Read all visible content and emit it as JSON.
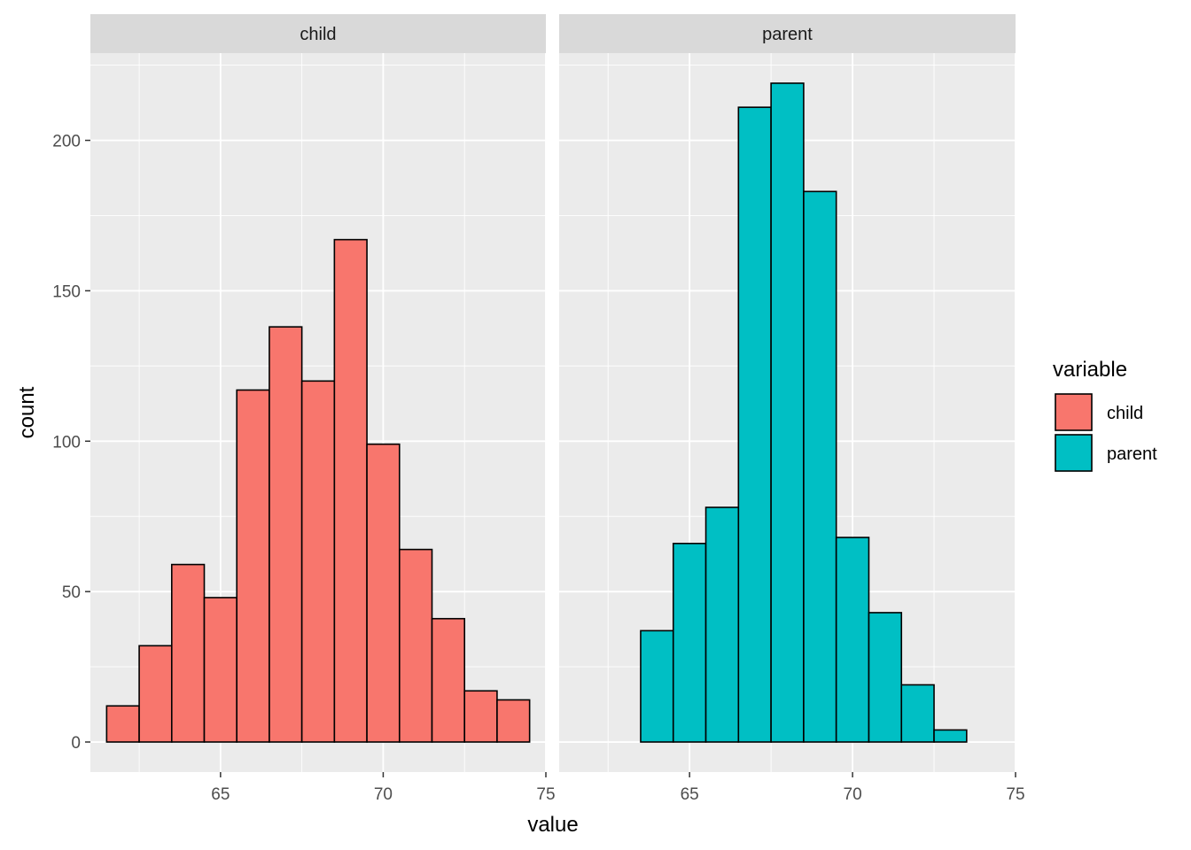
{
  "chart_data": {
    "type": "bar",
    "subtype": "faceted-histogram",
    "xlabel": "value",
    "ylabel": "count",
    "xlim": [
      61.0,
      75.0
    ],
    "ylim": [
      -10,
      229
    ],
    "x_ticks": [
      65,
      70,
      75
    ],
    "y_ticks": [
      0,
      50,
      100,
      150,
      200
    ],
    "bin_width": 1,
    "grid": true,
    "legend": {
      "title": "variable",
      "position": "right",
      "entries": [
        {
          "label": "child",
          "color": "#F8766D"
        },
        {
          "label": "parent",
          "color": "#00BFC4"
        }
      ]
    },
    "facets": [
      {
        "title": "child",
        "color": "#F8766D",
        "bin_centers": [
          62,
          63,
          64,
          65,
          66,
          67,
          68,
          69,
          70,
          71,
          72,
          73,
          74
        ],
        "values": [
          12,
          32,
          59,
          48,
          117,
          138,
          120,
          167,
          99,
          64,
          41,
          17,
          14
        ]
      },
      {
        "title": "parent",
        "color": "#00BFC4",
        "bin_centers": [
          62,
          63,
          64,
          65,
          66,
          67,
          68,
          69,
          70,
          71,
          72,
          73,
          74
        ],
        "values": [
          0,
          0,
          37,
          66,
          78,
          211,
          219,
          183,
          68,
          43,
          19,
          4,
          0
        ]
      }
    ]
  }
}
